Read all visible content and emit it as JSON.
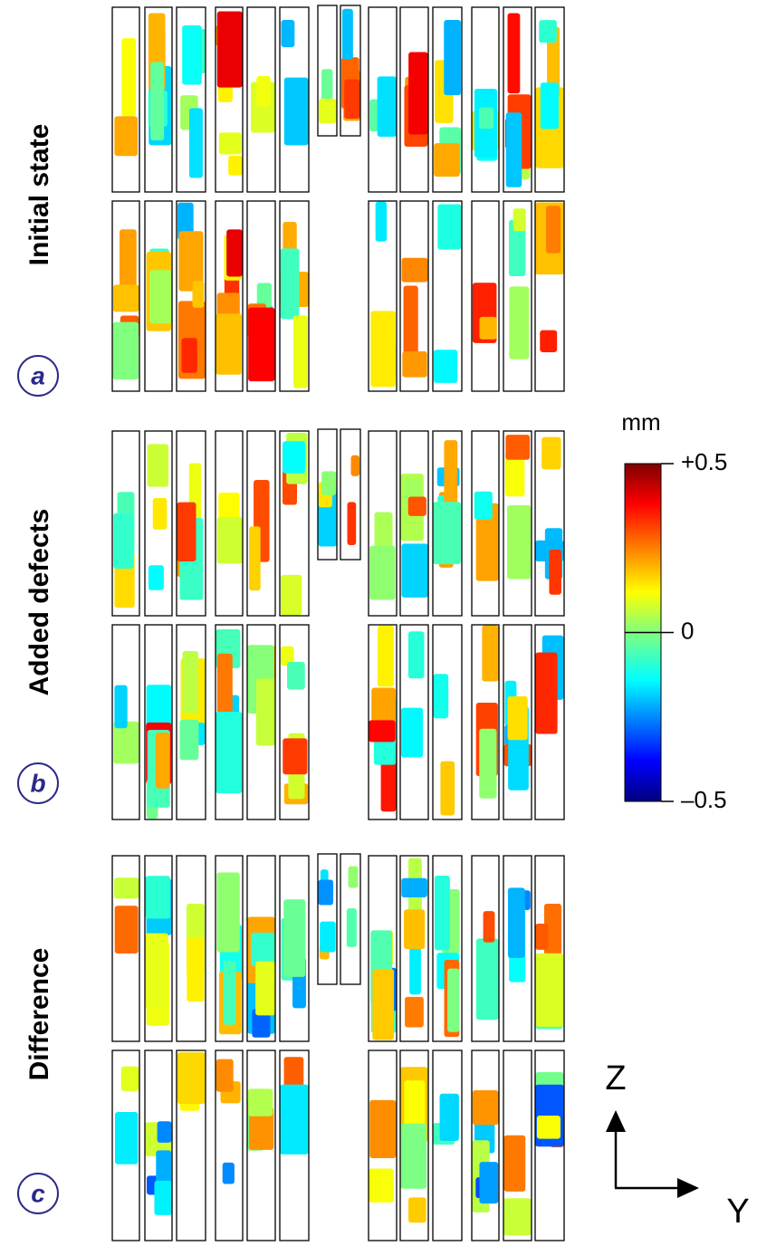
{
  "rows": [
    {
      "label": "Initial state",
      "letter": "a"
    },
    {
      "label": "Added defects",
      "letter": "b"
    },
    {
      "label": "Difference",
      "letter": "c"
    }
  ],
  "colorbar": {
    "unit": "mm",
    "lim": [
      -0.5,
      0.5
    ],
    "ticks": [
      {
        "value": 0.5,
        "label": "+0.5"
      },
      0,
      {
        "value": -0.5,
        "label": "–0.5"
      }
    ]
  },
  "axes": {
    "vertical": "Z",
    "horizontal": "Y"
  }
}
